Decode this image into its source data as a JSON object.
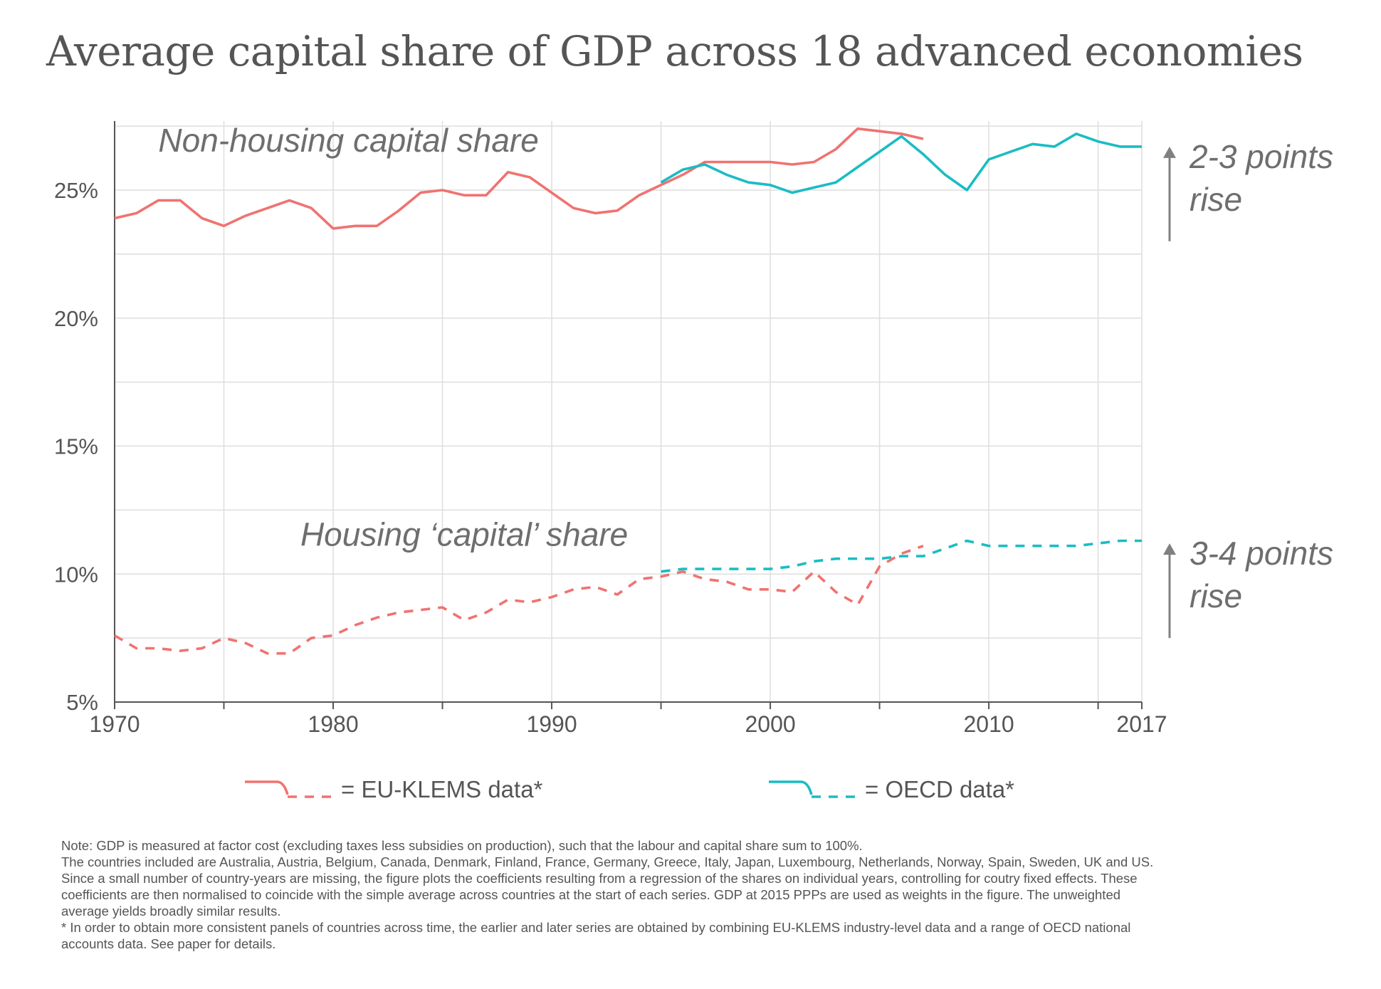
{
  "chart_data": {
    "type": "line",
    "title": "Average capital share of GDP across 18 advanced economies",
    "xlabel": "",
    "ylabel": "",
    "xlim": [
      1970,
      2017
    ],
    "ylim": [
      5,
      28
    ],
    "x_ticks": [
      1970,
      1980,
      1990,
      2000,
      2010,
      2017
    ],
    "y_ticks": [
      {
        "value": 5,
        "label": "5%"
      },
      {
        "value": 10,
        "label": "10%"
      },
      {
        "value": 15,
        "label": "15%"
      },
      {
        "value": 20,
        "label": "20%"
      },
      {
        "value": 25,
        "label": "25%"
      }
    ],
    "grid": true,
    "series": [
      {
        "name": "Non-housing capital share",
        "source": "EU-KLEMS",
        "style": "solid",
        "color": "#ef7370",
        "x": [
          1970,
          1971,
          1972,
          1973,
          1974,
          1975,
          1976,
          1977,
          1978,
          1979,
          1980,
          1981,
          1982,
          1983,
          1984,
          1985,
          1986,
          1987,
          1988,
          1989,
          1990,
          1991,
          1992,
          1993,
          1994,
          1995,
          1996,
          1997,
          1998,
          1999,
          2000,
          2001,
          2002,
          2003,
          2004,
          2005,
          2006,
          2007
        ],
        "values": [
          23.9,
          24.1,
          24.6,
          24.6,
          23.9,
          23.6,
          24.0,
          24.3,
          24.6,
          24.3,
          23.5,
          23.6,
          23.6,
          24.2,
          24.9,
          25.0,
          24.8,
          24.8,
          25.7,
          25.5,
          24.9,
          24.3,
          24.1,
          24.2,
          24.8,
          25.2,
          25.6,
          26.1,
          26.1,
          26.1,
          26.1,
          26.0,
          26.1,
          26.6,
          27.4,
          27.3,
          27.2,
          27.0
        ]
      },
      {
        "name": "Non-housing capital share",
        "source": "OECD",
        "style": "solid",
        "color": "#1bbcc4",
        "x": [
          1995,
          1996,
          1997,
          1998,
          1999,
          2000,
          2001,
          2002,
          2003,
          2004,
          2005,
          2006,
          2007,
          2008,
          2009,
          2010,
          2011,
          2012,
          2013,
          2014,
          2015,
          2016,
          2017
        ],
        "values": [
          25.3,
          25.8,
          26.0,
          25.6,
          25.3,
          25.2,
          24.9,
          25.1,
          25.3,
          25.9,
          26.5,
          27.1,
          26.4,
          25.6,
          25.0,
          26.2,
          26.5,
          26.8,
          26.7,
          27.2,
          26.9,
          26.7,
          26.7
        ]
      },
      {
        "name": "Housing 'capital' share",
        "source": "EU-KLEMS",
        "style": "dashed",
        "color": "#ef7370",
        "x": [
          1970,
          1971,
          1972,
          1973,
          1974,
          1975,
          1976,
          1977,
          1978,
          1979,
          1980,
          1981,
          1982,
          1983,
          1984,
          1985,
          1986,
          1987,
          1988,
          1989,
          1990,
          1991,
          1992,
          1993,
          1994,
          1995,
          1996,
          1997,
          1998,
          1999,
          2000,
          2001,
          2002,
          2003,
          2004,
          2005,
          2006,
          2007
        ],
        "values": [
          7.6,
          7.1,
          7.1,
          7.0,
          7.1,
          7.5,
          7.3,
          6.9,
          6.9,
          7.5,
          7.6,
          8.0,
          8.3,
          8.5,
          8.6,
          8.7,
          8.2,
          8.5,
          9.0,
          8.9,
          9.1,
          9.4,
          9.5,
          9.2,
          9.8,
          9.9,
          10.1,
          9.8,
          9.7,
          9.4,
          9.4,
          9.3,
          10.1,
          9.3,
          8.8,
          10.3,
          10.8,
          11.1
        ]
      },
      {
        "name": "Housing 'capital' share",
        "source": "OECD",
        "style": "dashed",
        "color": "#1bbcc4",
        "x": [
          1995,
          1996,
          1997,
          1998,
          1999,
          2000,
          2001,
          2002,
          2003,
          2004,
          2005,
          2006,
          2007,
          2008,
          2009,
          2010,
          2011,
          2012,
          2013,
          2014,
          2015,
          2016,
          2017
        ],
        "values": [
          10.1,
          10.2,
          10.2,
          10.2,
          10.2,
          10.2,
          10.3,
          10.5,
          10.6,
          10.6,
          10.6,
          10.7,
          10.7,
          11.0,
          11.3,
          11.1,
          11.1,
          11.1,
          11.1,
          11.1,
          11.2,
          11.3,
          11.3
        ]
      }
    ],
    "annotations": [
      {
        "text": "Non-housing capital share",
        "x": 1972,
        "y": 26.5
      },
      {
        "text": "Housing ‘capital’ share",
        "x": 1978.5,
        "y": 11.1
      }
    ],
    "side_labels": [
      {
        "line1": "2-3 points",
        "line2": "rise",
        "y_from": 23.0,
        "y_to": 26.7
      },
      {
        "line1": "3-4 points",
        "line2": "rise",
        "y_from": 7.5,
        "y_to": 11.2
      }
    ],
    "legend": {
      "placement": "bottom",
      "entries": [
        {
          "label": "= EU-KLEMS data*",
          "color": "#ef7370"
        },
        {
          "label": "= OECD data*",
          "color": "#1bbcc4"
        }
      ]
    }
  },
  "notes": [
    "Note: GDP is measured at factor cost (excluding taxes less subsidies on production), such that the labour and capital share sum to 100%.",
    "The countries included are Australia, Austria, Belgium, Canada, Denmark, Finland, France, Germany, Greece, Italy, Japan, Luxembourg,  Netherlands, Norway,  Spain, Sweden, UK and US.",
    "Since a small number of country-years are missing, the figure plots the coefficients resulting from a regression of the shares on individual years, controlling for coutry fixed effects. These",
    "coefficients are then normalised to coincide with the simple average across countries at the start of each series.  GDP at 2015 PPPs are used as weights in the figure. The unweighted",
    "average yields broadly similar results.",
    "* In order to obtain more consistent panels of countries across time, the earlier and later series are obtained by combining EU-KLEMS industry-level data and a range of OECD national",
    "accounts data. See paper for details."
  ]
}
